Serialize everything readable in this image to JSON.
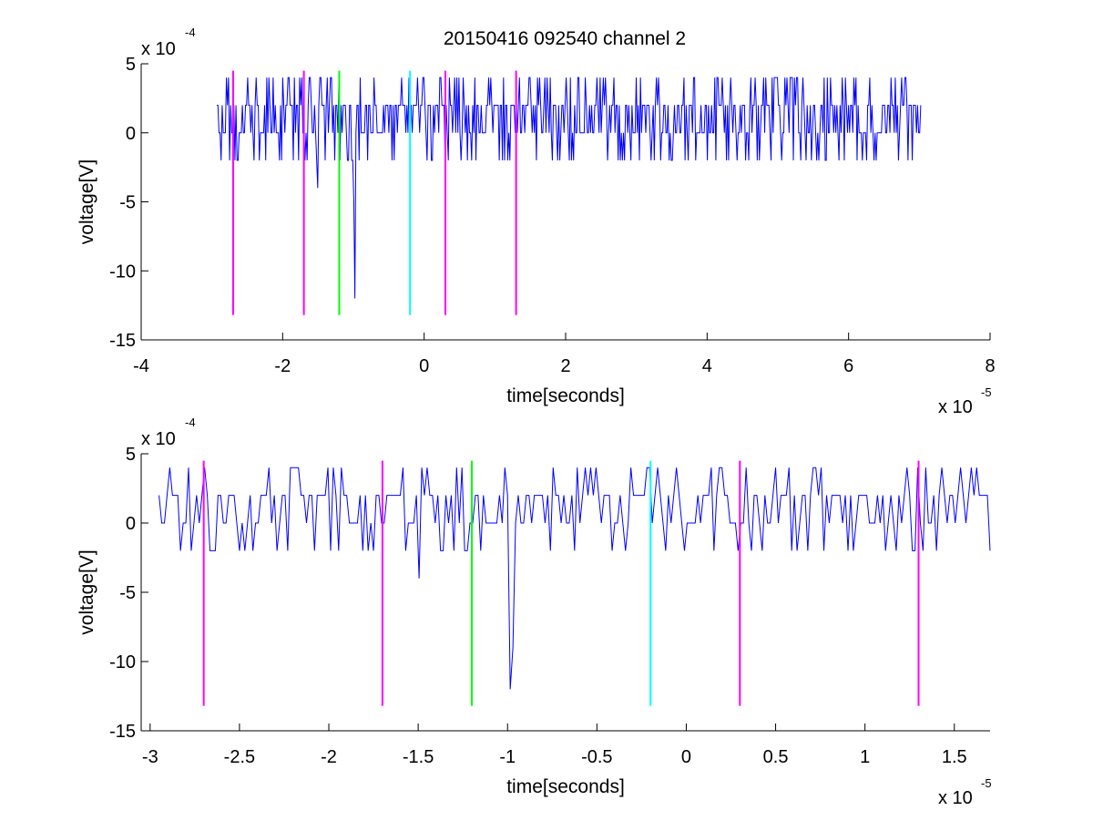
{
  "chart_data": [
    {
      "type": "line",
      "title": "20150416 092540 channel 2",
      "xlabel": "time[seconds]",
      "ylabel": "voltage[V]",
      "x_exponent_label": "x 10",
      "x_exponent": "-5",
      "y_exponent_label": "x 10",
      "y_exponent": "-4",
      "xlim": [
        -4,
        8
      ],
      "ylim": [
        -15,
        5
      ],
      "xticks": [
        -4,
        -2,
        0,
        2,
        4,
        6,
        8
      ],
      "xtick_labels": [
        "-4",
        "-2",
        "0",
        "2",
        "4",
        "6",
        "8"
      ],
      "yticks": [
        -15,
        -10,
        -5,
        0,
        5
      ],
      "ytick_labels": [
        "-15",
        "-10",
        "-5",
        "0",
        "5"
      ],
      "grid": false,
      "colors": {
        "signal": "#0000ff",
        "markers_magenta": "#ff00ff",
        "marker_green": "#00ff00",
        "marker_cyan": "#00ffff",
        "axes": "#000000"
      },
      "series": [
        {
          "color": "#0000ff",
          "x_range": [
            -2.93,
            7.02
          ],
          "y_levels": [
            -2,
            0,
            2,
            4
          ],
          "notable_points": [
            {
              "x": -1.5,
              "y": -4
            },
            {
              "x": -0.98,
              "y": -12
            },
            {
              "x": -1.0,
              "y": -5
            },
            {
              "x": 3.5,
              "y": -2
            }
          ]
        }
      ],
      "vertical_markers": [
        {
          "x": -2.7,
          "color": "#ff00ff",
          "y_range": [
            -13.2,
            4.5
          ]
        },
        {
          "x": -1.7,
          "color": "#ff00ff",
          "y_range": [
            -13.2,
            4.5
          ]
        },
        {
          "x": -1.2,
          "color": "#00ff00",
          "y_range": [
            -13.2,
            4.5
          ]
        },
        {
          "x": -0.2,
          "color": "#00ffff",
          "y_range": [
            -13.2,
            4.5
          ]
        },
        {
          "x": 0.3,
          "color": "#ff00ff",
          "y_range": [
            -13.2,
            4.5
          ]
        },
        {
          "x": 1.3,
          "color": "#ff00ff",
          "y_range": [
            -13.2,
            4.5
          ]
        }
      ]
    },
    {
      "type": "line",
      "title": "",
      "xlabel": "time[seconds]",
      "ylabel": "voltage[V]",
      "x_exponent_label": "x 10",
      "x_exponent": "-5",
      "y_exponent_label": "x 10",
      "y_exponent": "-4",
      "xlim": [
        -3.05,
        1.7
      ],
      "ylim": [
        -15,
        5
      ],
      "xticks": [
        -3,
        -2.5,
        -2,
        -1.5,
        -1,
        -0.5,
        0,
        0.5,
        1,
        1.5
      ],
      "xtick_labels": [
        "-3",
        "-2.5",
        "-2",
        "-1.5",
        "-1",
        "-0.5",
        "0",
        "0.5",
        "1",
        "1.5"
      ],
      "yticks": [
        -15,
        -10,
        -5,
        0,
        5
      ],
      "ytick_labels": [
        "-15",
        "-10",
        "-5",
        "0",
        "5"
      ],
      "grid": false,
      "colors": {
        "signal": "#0000ff",
        "markers_magenta": "#ff00ff",
        "marker_green": "#00ff00",
        "marker_cyan": "#00ffff",
        "axes": "#000000"
      },
      "series": [
        {
          "color": "#0000ff",
          "x_range": [
            -2.95,
            1.7
          ],
          "y_levels": [
            -2,
            0,
            2,
            4
          ],
          "notable_points": [
            {
              "x": -1.5,
              "y": -4
            },
            {
              "x": -0.98,
              "y": -12
            },
            {
              "x": -0.97,
              "y": -9
            }
          ]
        }
      ],
      "vertical_markers": [
        {
          "x": -2.7,
          "color": "#ff00ff",
          "y_range": [
            -13.2,
            4.5
          ]
        },
        {
          "x": -1.7,
          "color": "#ff00ff",
          "y_range": [
            -13.2,
            4.5
          ]
        },
        {
          "x": -1.2,
          "color": "#00ff00",
          "y_range": [
            -13.2,
            4.5
          ]
        },
        {
          "x": -0.2,
          "color": "#00ffff",
          "y_range": [
            -13.2,
            4.5
          ]
        },
        {
          "x": 0.3,
          "color": "#ff00ff",
          "y_range": [
            -13.2,
            4.5
          ]
        },
        {
          "x": 1.3,
          "color": "#ff00ff",
          "y_range": [
            -13.2,
            4.5
          ]
        }
      ]
    }
  ]
}
